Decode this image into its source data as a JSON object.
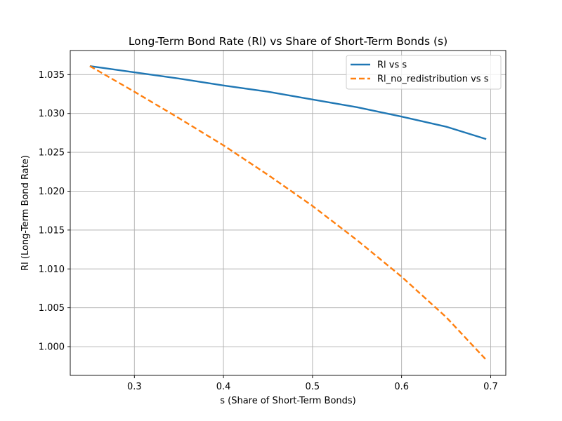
{
  "chart_data": {
    "type": "line",
    "title": "Long-Term Bond Rate (Rl) vs Share of Short-Term Bonds (s)",
    "xlabel": "s (Share of Short-Term Bonds)",
    "ylabel": "Rl (Long-Term Bond Rate)",
    "xlim": [
      0.228,
      0.717
    ],
    "ylim": [
      0.9963,
      1.0381
    ],
    "x_ticks": [
      0.3,
      0.4,
      0.5,
      0.6,
      0.7
    ],
    "x_tick_labels": [
      "0.3",
      "0.4",
      "0.5",
      "0.6",
      "0.7"
    ],
    "y_ticks": [
      1.0,
      1.005,
      1.01,
      1.015,
      1.02,
      1.025,
      1.03,
      1.035
    ],
    "y_tick_labels": [
      "1.000",
      "1.005",
      "1.010",
      "1.015",
      "1.020",
      "1.025",
      "1.030",
      "1.035"
    ],
    "grid": true,
    "legend_position": "top-right",
    "series": [
      {
        "name": "Rl vs s",
        "color": "#1f77b4",
        "style": "solid",
        "x": [
          0.25,
          0.3,
          0.35,
          0.4,
          0.45,
          0.5,
          0.55,
          0.6,
          0.65,
          0.695
        ],
        "y": [
          1.0361,
          1.0353,
          1.0345,
          1.0336,
          1.0328,
          1.0318,
          1.0308,
          1.0296,
          1.0283,
          1.0267
        ]
      },
      {
        "name": "Rl_no_redistribution vs s",
        "color": "#ff7f0e",
        "style": "dashed",
        "x": [
          0.25,
          0.3,
          0.35,
          0.4,
          0.45,
          0.5,
          0.55,
          0.6,
          0.65,
          0.695
        ],
        "y": [
          1.0361,
          1.0328,
          1.0294,
          1.0259,
          1.0221,
          1.0181,
          1.0137,
          1.009,
          1.0038,
          0.9983
        ]
      }
    ]
  }
}
